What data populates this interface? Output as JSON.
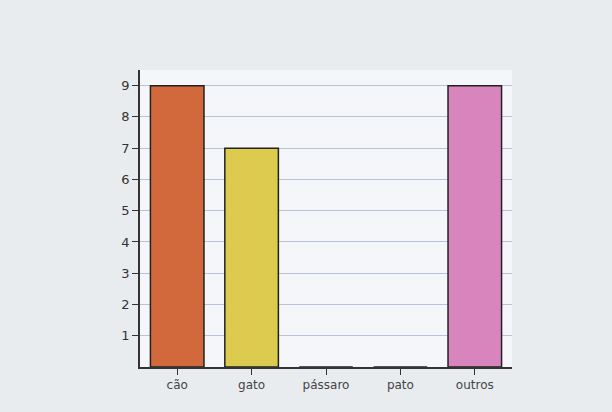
{
  "chart_data": {
    "type": "bar",
    "categories": [
      "cão",
      "gato",
      "pássaro",
      "pato",
      "outros"
    ],
    "values": [
      9,
      7,
      0,
      0,
      9
    ],
    "colors": [
      "#d2693c",
      "#dccb4e",
      "#cccccc",
      "#cccccc",
      "#d884bd"
    ],
    "ylim": [
      0,
      9.5
    ],
    "yticks": [
      1,
      2,
      3,
      4,
      5,
      6,
      7,
      8,
      9
    ],
    "grid": true
  }
}
